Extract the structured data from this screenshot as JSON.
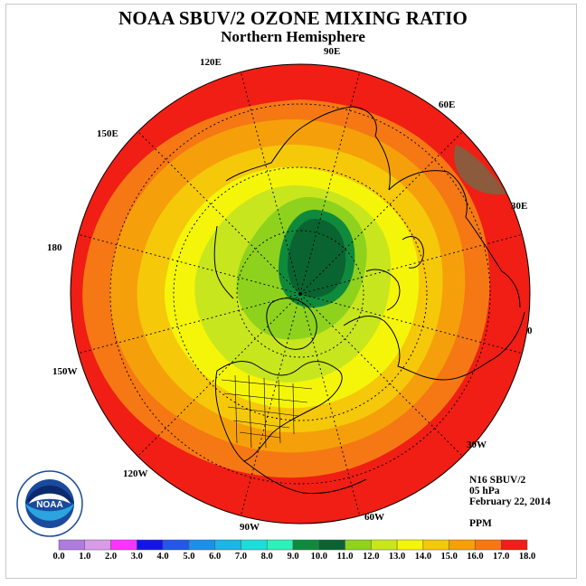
{
  "header": {
    "title": "NOAA SBUV/2 OZONE MIXING RATIO",
    "subtitle": "Northern Hemisphere"
  },
  "map": {
    "projection": "north-polar-stereographic",
    "longitude_labels": [
      "90E",
      "60E",
      "30E",
      "0",
      "30W",
      "60W",
      "90W",
      "120W",
      "150W",
      "180",
      "150E",
      "120E"
    ],
    "color_bands_outer_to_inner_ppm": [
      17,
      16,
      15,
      14,
      13,
      12,
      11,
      10,
      9
    ],
    "features": [
      "ozone-maximum-over-eastern-siberia",
      "ozone-high-region-northeast-russia"
    ]
  },
  "info": {
    "instrument": "N16 SBUV/2",
    "level": "05 hPa",
    "date": "February 22, 2014",
    "units": "PPM"
  },
  "legend": {
    "ticks": [
      "0.0",
      "1.0",
      "2.0",
      "3.0",
      "4.0",
      "5.0",
      "6.0",
      "7.0",
      "8.0",
      "9.0",
      "10.0",
      "11.0",
      "12.0",
      "13.0",
      "14.0",
      "15.0",
      "16.0",
      "17.0",
      "18.0"
    ],
    "colors": [
      "#b07be0",
      "#d79be8",
      "#ff33ff",
      "#1414e6",
      "#1e5ae6",
      "#1e8fe6",
      "#1eb4e6",
      "#1edcdc",
      "#2ef0b8",
      "#0f8a3c",
      "#0a6432",
      "#8ed21e",
      "#c8e61e",
      "#f5f50a",
      "#f5c80a",
      "#f5a00a",
      "#f57814",
      "#f01e14",
      "#8c5a3c"
    ]
  },
  "logo": {
    "text": "NOAA",
    "ring_text": "NATIONAL OCEANIC AND ATMOSPHERIC ADMINISTRATION • U.S. DEPARTMENT OF COMMERCE"
  }
}
